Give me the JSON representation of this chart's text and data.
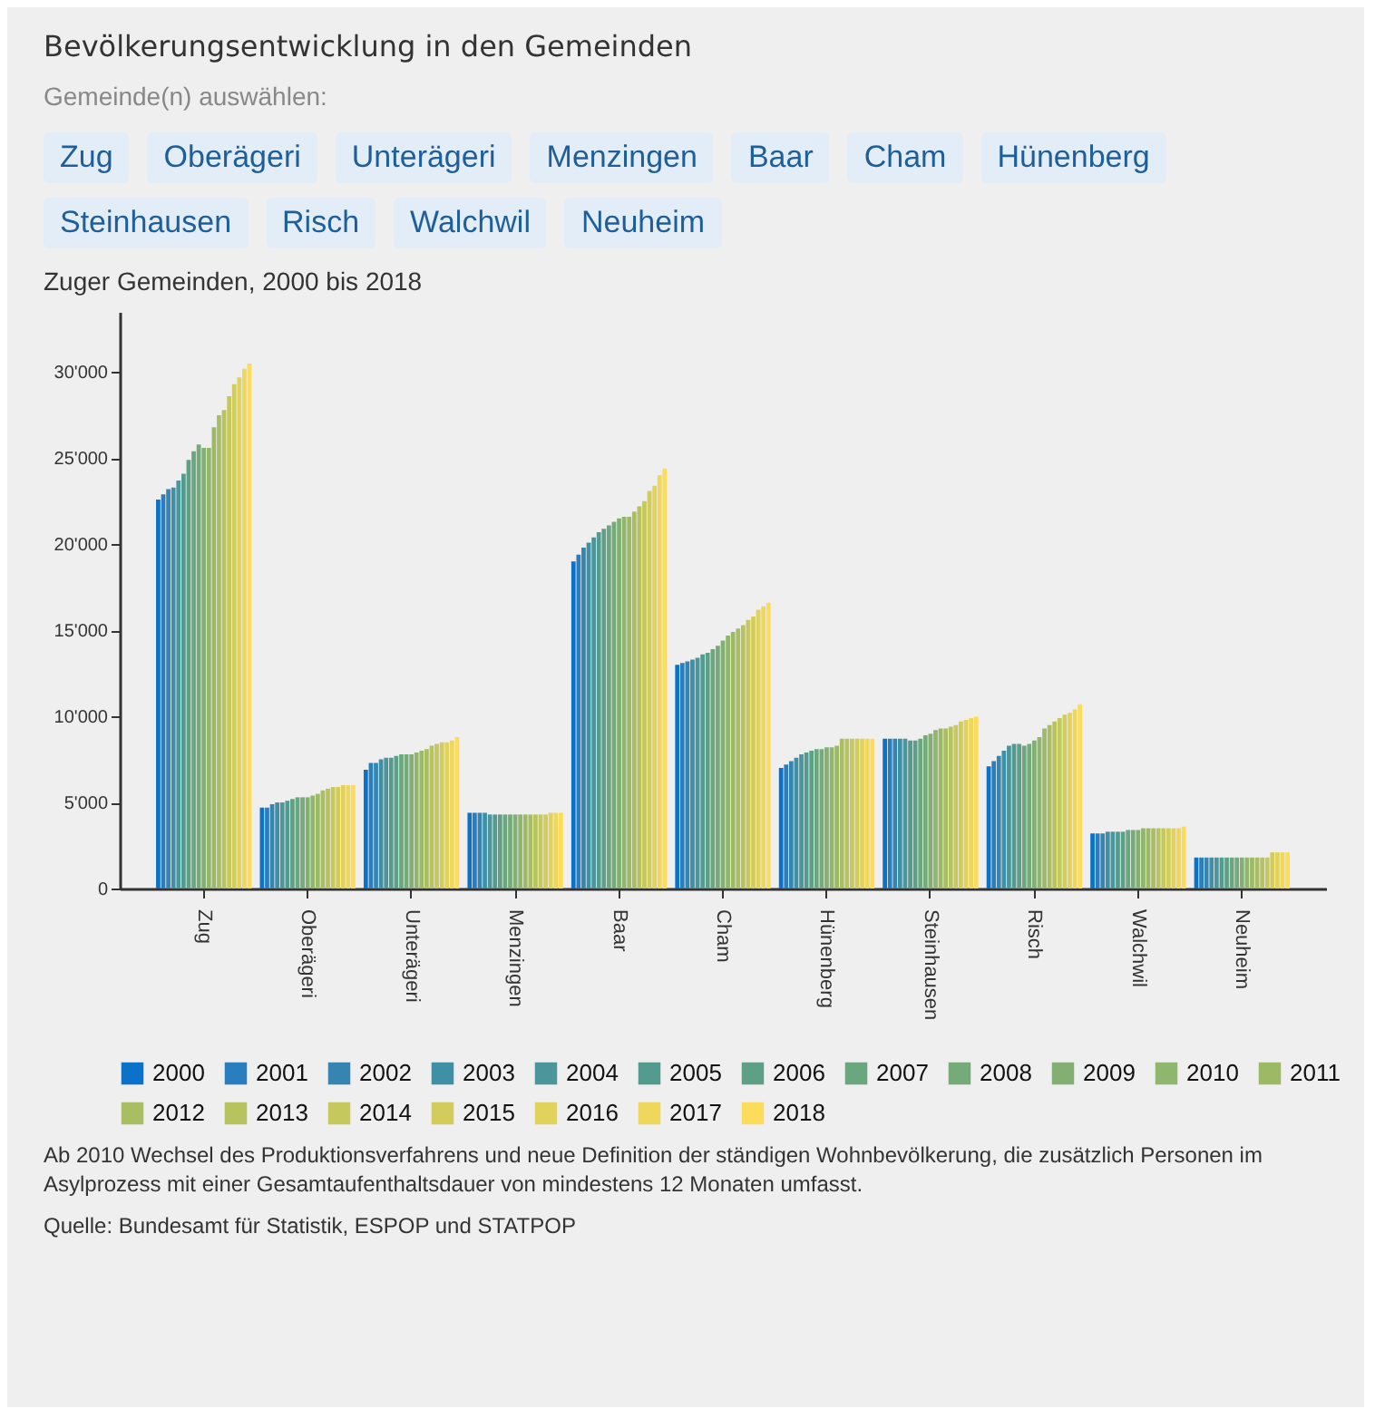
{
  "chart_data": {
    "type": "bar",
    "title": "Bevölkerungsentwicklung in den Gemeinden",
    "subtitle": "Zuger Gemeinden, 2000 bis 2018",
    "categories": [
      "Zug",
      "Oberägeri",
      "Unterägeri",
      "Menzingen",
      "Baar",
      "Cham",
      "Hünenberg",
      "Steinhausen",
      "Risch",
      "Walchwil",
      "Neuheim"
    ],
    "series": [
      {
        "name": "2000",
        "color": "#0a72c8",
        "values": [
          22600,
          4700,
          6900,
          4400,
          19000,
          13000,
          7000,
          8700,
          7100,
          3200,
          1800
        ]
      },
      {
        "name": "2001",
        "color": "#2a7ebd",
        "values": [
          22900,
          4700,
          7300,
          4400,
          19400,
          13100,
          7200,
          8700,
          7400,
          3200,
          1800
        ]
      },
      {
        "name": "2002",
        "color": "#3585b0",
        "values": [
          23200,
          4900,
          7300,
          4400,
          19800,
          13200,
          7400,
          8700,
          7700,
          3200,
          1800
        ]
      },
      {
        "name": "2003",
        "color": "#3f8fa5",
        "values": [
          23300,
          5000,
          7500,
          4400,
          20100,
          13300,
          7600,
          8700,
          8000,
          3300,
          1800
        ]
      },
      {
        "name": "2004",
        "color": "#4a969a",
        "values": [
          23700,
          5000,
          7600,
          4300,
          20400,
          13400,
          7800,
          8700,
          8300,
          3300,
          1800
        ]
      },
      {
        "name": "2005",
        "color": "#549b8f",
        "values": [
          24100,
          5100,
          7600,
          4300,
          20700,
          13600,
          7900,
          8600,
          8400,
          3300,
          1800
        ]
      },
      {
        "name": "2006",
        "color": "#5ea086",
        "values": [
          24900,
          5200,
          7700,
          4300,
          20900,
          13700,
          8000,
          8600,
          8400,
          3300,
          1800
        ]
      },
      {
        "name": "2007",
        "color": "#6aa67e",
        "values": [
          25400,
          5300,
          7800,
          4300,
          21100,
          13900,
          8100,
          8700,
          8300,
          3400,
          1800
        ]
      },
      {
        "name": "2008",
        "color": "#75ab78",
        "values": [
          25800,
          5300,
          7800,
          4300,
          21300,
          14100,
          8100,
          8900,
          8400,
          3400,
          1800
        ]
      },
      {
        "name": "2009",
        "color": "#83b072",
        "values": [
          25600,
          5300,
          7800,
          4300,
          21500,
          14400,
          8200,
          9000,
          8600,
          3400,
          1800
        ]
      },
      {
        "name": "2010",
        "color": "#90b56c",
        "values": [
          25600,
          5400,
          7900,
          4300,
          21600,
          14700,
          8200,
          9200,
          8800,
          3500,
          1800
        ]
      },
      {
        "name": "2011",
        "color": "#9cba66",
        "values": [
          26800,
          5500,
          8000,
          4300,
          21600,
          14900,
          8300,
          9300,
          9300,
          3500,
          1800
        ]
      },
      {
        "name": "2012",
        "color": "#a9bd62",
        "values": [
          27500,
          5700,
          8100,
          4300,
          21900,
          15100,
          8700,
          9300,
          9500,
          3500,
          1800
        ]
      },
      {
        "name": "2013",
        "color": "#b7c35f",
        "values": [
          27800,
          5800,
          8300,
          4300,
          22200,
          15300,
          8700,
          9400,
          9700,
          3500,
          1800
        ]
      },
      {
        "name": "2014",
        "color": "#c4c85d",
        "values": [
          28600,
          5900,
          8400,
          4300,
          22500,
          15600,
          8700,
          9500,
          9900,
          3500,
          1800
        ]
      },
      {
        "name": "2015",
        "color": "#d1cc5b",
        "values": [
          29300,
          5900,
          8500,
          4300,
          23100,
          15800,
          8700,
          9700,
          10100,
          3500,
          2100
        ]
      },
      {
        "name": "2016",
        "color": "#e0d25a",
        "values": [
          29700,
          6000,
          8500,
          4400,
          23400,
          16200,
          8700,
          9800,
          10200,
          3500,
          2100
        ]
      },
      {
        "name": "2017",
        "color": "#eed75a",
        "values": [
          30200,
          6000,
          8600,
          4400,
          24000,
          16400,
          8700,
          9900,
          10400,
          3500,
          2100
        ]
      },
      {
        "name": "2018",
        "color": "#fcdc5a",
        "values": [
          30500,
          6000,
          8800,
          4400,
          24400,
          16600,
          8700,
          10000,
          10700,
          3600,
          2100
        ]
      }
    ],
    "ylim": [
      0,
      33500
    ],
    "yticks": [
      {
        "value": 0,
        "label": "0"
      },
      {
        "value": 5000,
        "label": "5'000"
      },
      {
        "value": 10000,
        "label": "10'000"
      },
      {
        "value": 15000,
        "label": "15'000"
      },
      {
        "value": 20000,
        "label": "20'000"
      },
      {
        "value": 25000,
        "label": "25'000"
      },
      {
        "value": 30000,
        "label": "30'000"
      }
    ],
    "grid": false,
    "legend": "bottom",
    "annotations": [
      "Gemeinde(n) auswählen:",
      "Ab 2010 Wechsel des Produktionsverfahrens und neue Definition der ständigen Wohnbevölkerung, die zusätzlich Personen im Asylprozess mit einer Gesamtaufenthaltsdauer von mindestens 12 Monaten umfasst.",
      "Quelle: Bundesamt für Statistik, ESPOP und STATPOP"
    ]
  }
}
